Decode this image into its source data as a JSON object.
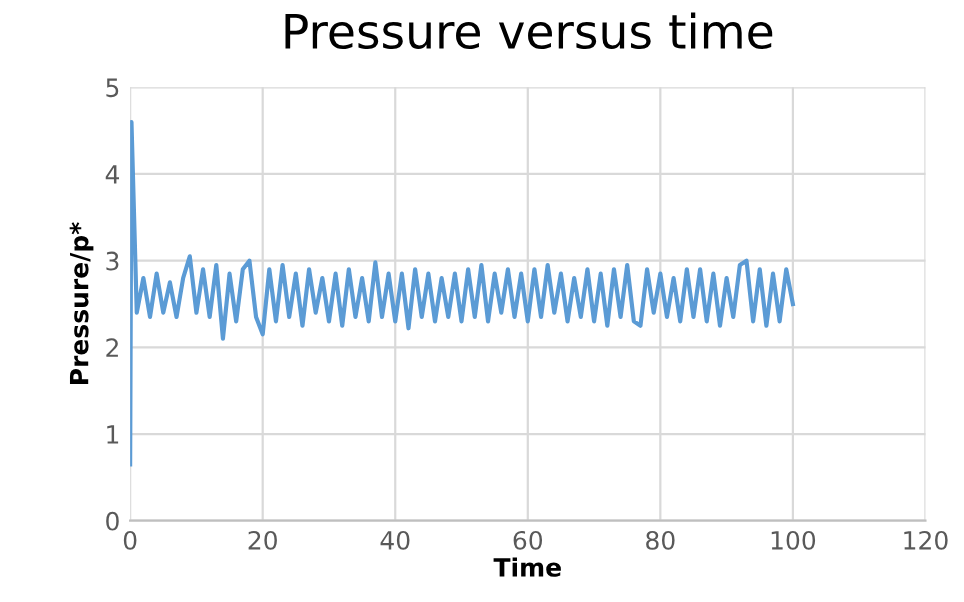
{
  "chart_data": {
    "type": "line",
    "title": "Pressure versus time",
    "xlabel": "Time",
    "ylabel": "Pressure/p*",
    "xlim": [
      0,
      120
    ],
    "xticks": [
      0,
      20,
      40,
      60,
      80,
      100,
      120
    ],
    "ylim": [
      0,
      5
    ],
    "yticks": [
      0,
      1,
      2,
      3,
      4,
      5
    ],
    "grid": true,
    "series": [
      {
        "color": "#5b9bd5",
        "x": [
          0,
          0.2,
          1,
          2,
          3,
          4,
          5,
          6,
          7,
          8,
          9,
          10,
          11,
          12,
          13,
          14,
          15,
          16,
          17,
          18,
          19,
          20,
          21,
          22,
          23,
          24,
          25,
          26,
          27,
          28,
          29,
          30,
          31,
          32,
          33,
          34,
          35,
          36,
          37,
          38,
          39,
          40,
          41,
          42,
          43,
          44,
          45,
          46,
          47,
          48,
          49,
          50,
          51,
          52,
          53,
          54,
          55,
          56,
          57,
          58,
          59,
          60,
          61,
          62,
          63,
          64,
          65,
          66,
          67,
          68,
          69,
          70,
          71,
          72,
          73,
          74,
          75,
          76,
          77,
          78,
          79,
          80,
          81,
          82,
          83,
          84,
          85,
          86,
          87,
          88,
          89,
          90,
          91,
          92,
          93,
          94,
          95,
          96,
          97,
          98,
          99,
          100
        ],
        "values": [
          0.65,
          4.6,
          2.4,
          2.8,
          2.35,
          2.85,
          2.4,
          2.75,
          2.35,
          2.8,
          3.05,
          2.4,
          2.9,
          2.35,
          2.95,
          2.1,
          2.85,
          2.3,
          2.9,
          3.0,
          2.35,
          2.15,
          2.9,
          2.3,
          2.95,
          2.35,
          2.85,
          2.25,
          2.9,
          2.4,
          2.8,
          2.3,
          2.85,
          2.25,
          2.9,
          2.35,
          2.8,
          2.3,
          2.98,
          2.35,
          2.85,
          2.3,
          2.85,
          2.22,
          2.9,
          2.35,
          2.85,
          2.3,
          2.8,
          2.35,
          2.85,
          2.3,
          2.9,
          2.35,
          2.95,
          2.3,
          2.85,
          2.4,
          2.9,
          2.35,
          2.85,
          2.3,
          2.9,
          2.35,
          2.95,
          2.4,
          2.85,
          2.3,
          2.8,
          2.35,
          2.9,
          2.3,
          2.85,
          2.25,
          2.9,
          2.35,
          2.95,
          2.3,
          2.25,
          2.9,
          2.4,
          2.85,
          2.35,
          2.8,
          2.3,
          2.9,
          2.35,
          2.9,
          2.3,
          2.85,
          2.25,
          2.8,
          2.35,
          2.95,
          3.0,
          2.3,
          2.9,
          2.25,
          2.85,
          2.3,
          2.9,
          2.5
        ]
      }
    ]
  }
}
